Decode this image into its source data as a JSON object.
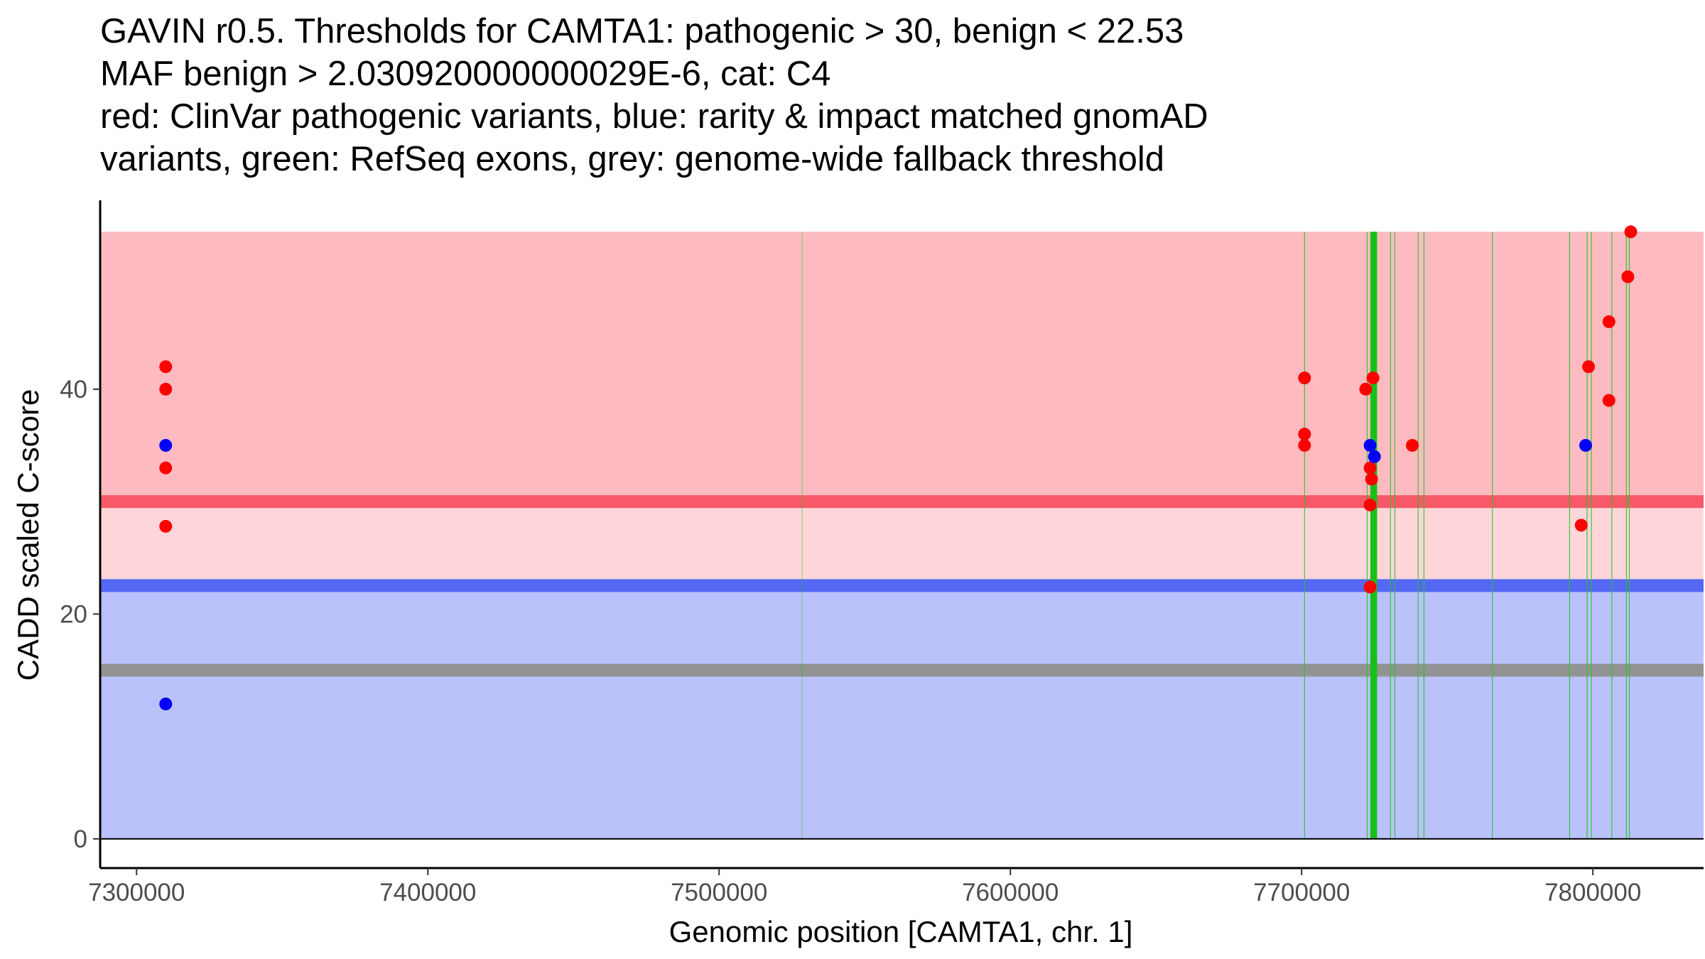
{
  "chart_data": {
    "type": "scatter",
    "title_lines": [
      "GAVIN r0.5. Thresholds for CAMTA1: pathogenic > 30, benign < 22.53",
      "MAF benign > 2.030920000000029E-6, cat: C4",
      "red: ClinVar pathogenic variants, blue: rarity & impact matched gnomAD",
      "variants, green: RefSeq exons, grey: genome-wide fallback threshold"
    ],
    "xlabel": "Genomic position [CAMTA1, chr. 1]",
    "ylabel": "CADD scaled C-score",
    "xlim": [
      7287500,
      7838000
    ],
    "ylim": [
      -2.6,
      56.8
    ],
    "x_ticks": [
      7300000,
      7400000,
      7500000,
      7600000,
      7700000,
      7800000
    ],
    "x_tick_labels": [
      "7300000",
      "7400000",
      "7500000",
      "7600000",
      "7700000",
      "7800000"
    ],
    "y_ticks": [
      0,
      20,
      40
    ],
    "y_tick_labels": [
      "0",
      "20",
      "40"
    ],
    "x_range": [
      7287500,
      7838000
    ],
    "bands": [
      {
        "name": "pathogenic-region",
        "y0": 30,
        "y1": 54,
        "color": "#fdbbc1"
      },
      {
        "name": "intermediate-region",
        "y0": 22.53,
        "y1": 30,
        "color": "#fed6da"
      },
      {
        "name": "benign-region",
        "y0": 0,
        "y1": 22.53,
        "color": "#bbc1fb"
      }
    ],
    "threshold_lines": [
      {
        "name": "pathogenic-threshold",
        "y": 30,
        "color": "#f75968"
      },
      {
        "name": "benign-threshold",
        "y": 22.53,
        "color": "#5468f4"
      },
      {
        "name": "fallback-threshold",
        "y": 15,
        "color": "#939393"
      }
    ],
    "exons": [
      {
        "x": 7528500,
        "strong": false
      },
      {
        "x": 7701000,
        "strong": false
      },
      {
        "x": 7722500,
        "strong": false
      },
      {
        "x": 7724200,
        "strong": true
      },
      {
        "x": 7725300,
        "strong": true
      },
      {
        "x": 7730500,
        "strong": false
      },
      {
        "x": 7732000,
        "strong": false
      },
      {
        "x": 7740000,
        "strong": false
      },
      {
        "x": 7742000,
        "strong": false
      },
      {
        "x": 7765500,
        "strong": false
      },
      {
        "x": 7792000,
        "strong": false
      },
      {
        "x": 7798000,
        "strong": false
      },
      {
        "x": 7799500,
        "strong": false
      },
      {
        "x": 7806500,
        "strong": false
      },
      {
        "x": 7811500,
        "strong": false
      },
      {
        "x": 7812500,
        "strong": false
      }
    ],
    "series": [
      {
        "name": "ClinVar pathogenic",
        "color": "#ff0000",
        "points": [
          {
            "x": 7310000,
            "y": 42
          },
          {
            "x": 7310000,
            "y": 40
          },
          {
            "x": 7310000,
            "y": 33
          },
          {
            "x": 7310000,
            "y": 27.8
          },
          {
            "x": 7701000,
            "y": 41
          },
          {
            "x": 7701000,
            "y": 36
          },
          {
            "x": 7701000,
            "y": 35
          },
          {
            "x": 7722000,
            "y": 40
          },
          {
            "x": 7724500,
            "y": 41
          },
          {
            "x": 7723500,
            "y": 33
          },
          {
            "x": 7724000,
            "y": 32
          },
          {
            "x": 7723500,
            "y": 29.7
          },
          {
            "x": 7723500,
            "y": 22.4
          },
          {
            "x": 7738000,
            "y": 35
          },
          {
            "x": 7796000,
            "y": 27.9
          },
          {
            "x": 7798500,
            "y": 42
          },
          {
            "x": 7805500,
            "y": 46
          },
          {
            "x": 7805500,
            "y": 39
          },
          {
            "x": 7812000,
            "y": 50
          },
          {
            "x": 7813000,
            "y": 54
          }
        ]
      },
      {
        "name": "gnomAD matched",
        "color": "#0000ff",
        "points": [
          {
            "x": 7310000,
            "y": 35
          },
          {
            "x": 7310000,
            "y": 12
          },
          {
            "x": 7723500,
            "y": 35
          },
          {
            "x": 7725000,
            "y": 34
          },
          {
            "x": 7797500,
            "y": 35
          }
        ]
      }
    ]
  }
}
